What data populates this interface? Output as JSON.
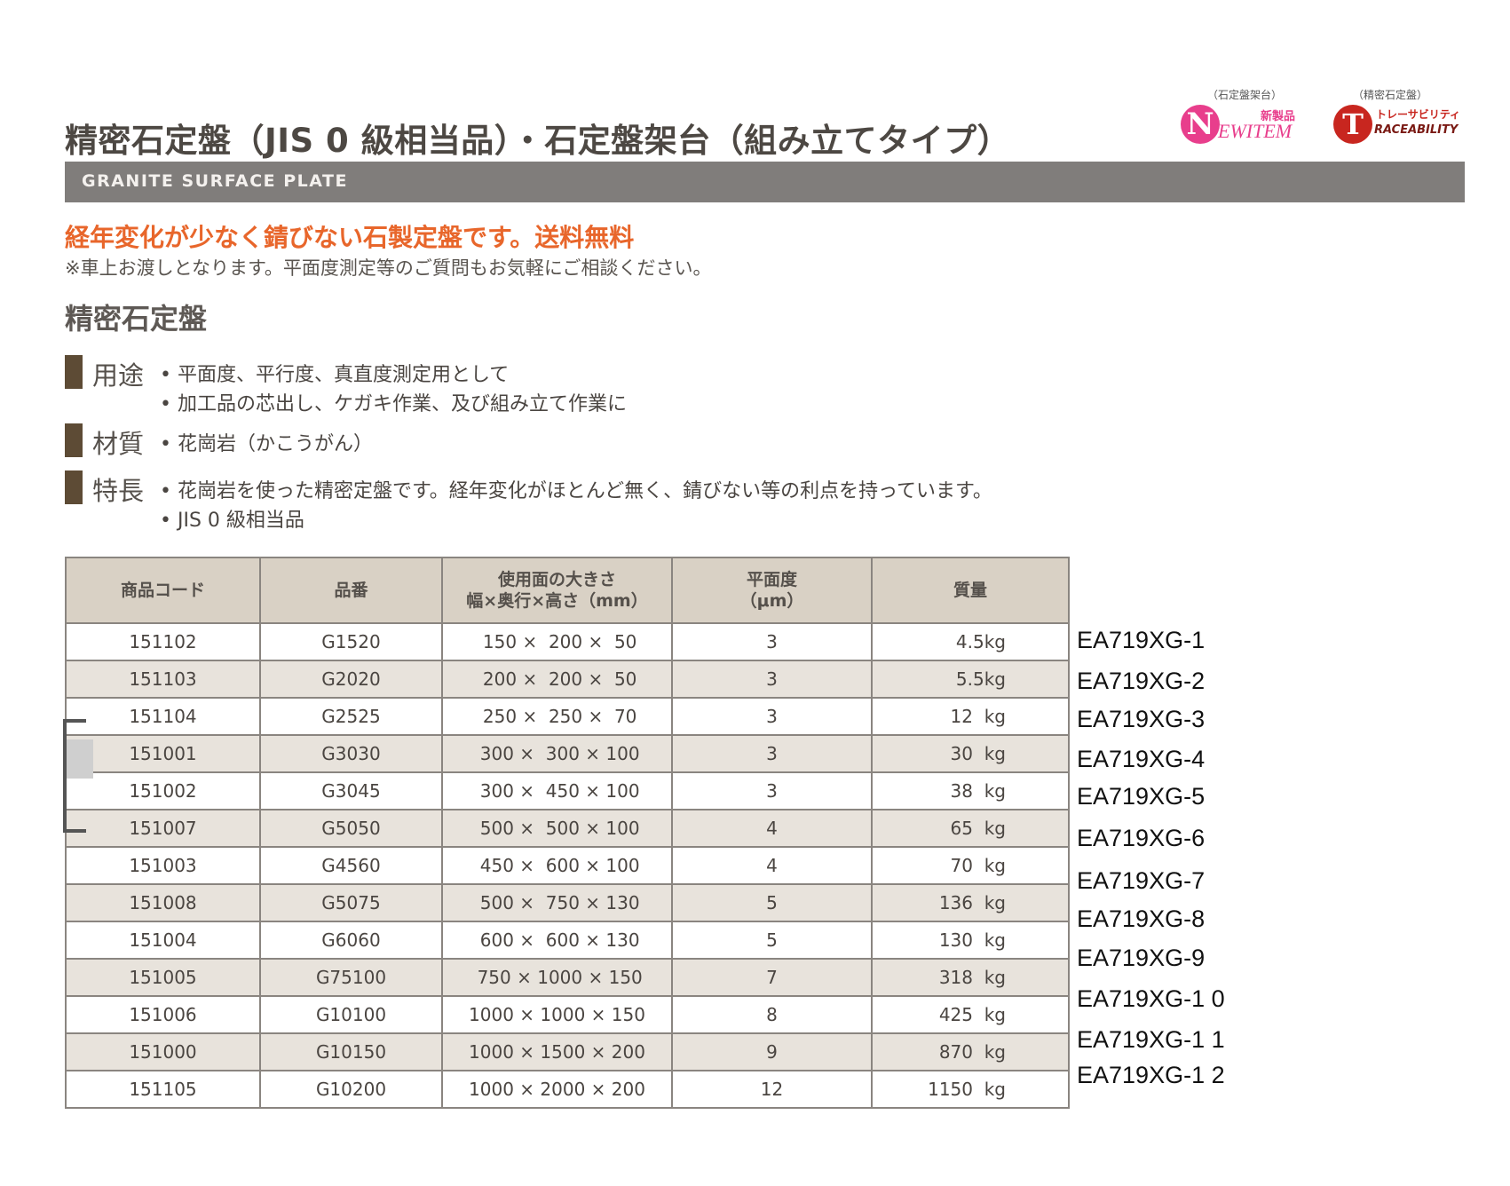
{
  "header": {
    "title": "精密石定盤（JIS 0 級相当品）・石定盤架台（組み立てタイプ）",
    "band_label": "GRANITE SURFACE PLATE"
  },
  "badges": {
    "new_item": {
      "caption": "（石定盤架台）",
      "letter": "N",
      "tag": "新製品",
      "text": "EWITEM",
      "color": "#e83e8c"
    },
    "traceability": {
      "caption": "（精密石定盤）",
      "letter": "T",
      "tag": "トレーサビリティ",
      "text": "RACEABILITY",
      "color": "#c8261f"
    }
  },
  "catch_copy": "経年変化が少なく錆びない石製定盤です。送料無料",
  "note": "※車上お渡しとなります。平面度測定等のご質問もお気軽にご相談ください。",
  "section_heading": "精密石定盤",
  "specs": {
    "usage": {
      "label": "用途",
      "lines": [
        "• 平面度、平行度、真直度測定用として",
        "• 加工品の芯出し、ケガキ作業、及び組み立て作業に"
      ]
    },
    "material": {
      "label": "材質",
      "lines": [
        "• 花崗岩（かこうがん）"
      ]
    },
    "features": {
      "label": "特長",
      "lines": [
        "• 花崗岩を使った精密定盤です。経年変化がほとんど無く、錆びない等の利点を持っています。",
        "• JIS 0 級相当品"
      ]
    }
  },
  "table": {
    "headers": {
      "code": "商品コード",
      "part": "品番",
      "size_1": "使用面の大きさ",
      "size_2": "幅×奥行×高さ（mm）",
      "flatness_1": "平面度",
      "flatness_2": "（μm）",
      "mass": "質量"
    },
    "rows": [
      {
        "code": "151102",
        "part": "G1520",
        "size": " 150 ×  200 ×  50",
        "flatness": "3",
        "mass": "4.5kg"
      },
      {
        "code": "151103",
        "part": "G2020",
        "size": " 200 ×  200 ×  50",
        "flatness": "3",
        "mass": "5.5kg"
      },
      {
        "code": "151104",
        "part": "G2525",
        "size": " 250 ×  250 ×  70",
        "flatness": "3",
        "mass": "12  kg"
      },
      {
        "code": "151001",
        "part": "G3030",
        "size": " 300 ×  300 × 100",
        "flatness": "3",
        "mass": "30  kg"
      },
      {
        "code": "151002",
        "part": "G3045",
        "size": " 300 ×  450 × 100",
        "flatness": "3",
        "mass": "38  kg"
      },
      {
        "code": "151007",
        "part": "G5050",
        "size": " 500 ×  500 × 100",
        "flatness": "4",
        "mass": "65  kg"
      },
      {
        "code": "151003",
        "part": "G4560",
        "size": " 450 ×  600 × 100",
        "flatness": "4",
        "mass": "70  kg"
      },
      {
        "code": "151008",
        "part": "G5075",
        "size": " 500 ×  750 × 130",
        "flatness": "5",
        "mass": "136  kg"
      },
      {
        "code": "151004",
        "part": "G6060",
        "size": " 600 ×  600 × 130",
        "flatness": "5",
        "mass": "130  kg"
      },
      {
        "code": "151005",
        "part": "G75100",
        "size": " 750 × 1000 × 150",
        "flatness": "7",
        "mass": "318  kg"
      },
      {
        "code": "151006",
        "part": "G10100",
        "size": "1000 × 1000 × 150",
        "flatness": "8",
        "mass": "425  kg"
      },
      {
        "code": "151000",
        "part": "G10150",
        "size": "1000 × 1500 × 200",
        "flatness": "9",
        "mass": "870  kg"
      },
      {
        "code": "151105",
        "part": "G10200",
        "size": "1000 × 2000 × 200",
        "flatness": "12",
        "mass": "1150  kg"
      }
    ]
  },
  "ext_codes": [
    "EA719XG-1",
    "EA719XG-2",
    "EA719XG-3",
    "EA719XG-4",
    "EA719XG-5",
    "EA719XG-6",
    "EA719XG-7",
    "EA719XG-8",
    "EA719XG-9",
    "EA719XG-1 0",
    "EA719XG-1 1",
    "EA719XG-1 2"
  ]
}
